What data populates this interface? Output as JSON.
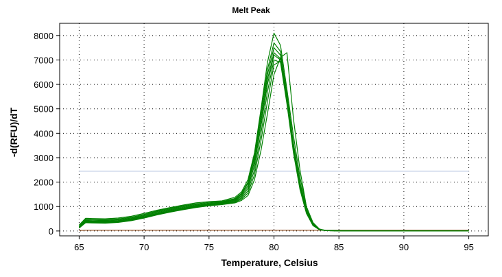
{
  "chart_data": {
    "type": "line",
    "title": "Melt Peak",
    "xlabel": "Temperature, Celsius",
    "ylabel": "-d(RFU)/dT",
    "xlim": [
      63.5,
      96.5
    ],
    "ylim": [
      -200,
      8500
    ],
    "x_ticks": [
      65,
      70,
      75,
      80,
      85,
      90,
      95
    ],
    "y_ticks": [
      0,
      1000,
      2000,
      3000,
      4000,
      5000,
      6000,
      7000,
      8000
    ],
    "grid": "dotted",
    "threshold": 2450,
    "threshold_color": "#c9d3e8",
    "series_color": "#008000",
    "baseline_color": "#8b4513",
    "x": [
      65,
      65.5,
      66,
      67,
      68,
      69,
      70,
      71,
      72,
      73,
      74,
      75,
      76,
      77,
      77.5,
      78,
      78.5,
      79,
      79.5,
      80,
      80.5,
      81,
      81.5,
      82,
      82.5,
      83,
      83.5,
      84,
      85,
      90,
      95
    ],
    "series": [
      {
        "values": [
          250,
          520,
          510,
          500,
          530,
          600,
          720,
          850,
          960,
          1060,
          1150,
          1200,
          1230,
          1380,
          1600,
          2100,
          3200,
          5000,
          6900,
          8100,
          7600,
          5800,
          3900,
          2200,
          1000,
          350,
          80,
          20,
          10,
          5,
          0
        ]
      },
      {
        "values": [
          200,
          480,
          470,
          460,
          490,
          560,
          680,
          820,
          930,
          1030,
          1110,
          1170,
          1200,
          1330,
          1540,
          2000,
          3100,
          4900,
          6600,
          7700,
          7350,
          5600,
          3600,
          2000,
          900,
          300,
          70,
          20,
          10,
          5,
          0
        ]
      },
      {
        "values": [
          180,
          450,
          440,
          430,
          460,
          530,
          650,
          790,
          900,
          1000,
          1080,
          1140,
          1180,
          1300,
          1500,
          1950,
          3000,
          4700,
          6400,
          7500,
          7200,
          5500,
          3500,
          1900,
          850,
          280,
          60,
          15,
          8,
          5,
          0
        ]
      },
      {
        "values": [
          160,
          420,
          410,
          400,
          430,
          500,
          620,
          760,
          870,
          970,
          1050,
          1110,
          1160,
          1270,
          1450,
          1850,
          2850,
          4500,
          6200,
          7300,
          7050,
          5400,
          3400,
          1850,
          800,
          260,
          60,
          15,
          8,
          5,
          0
        ]
      },
      {
        "values": [
          150,
          400,
          390,
          380,
          410,
          480,
          590,
          730,
          840,
          940,
          1020,
          1090,
          1140,
          1240,
          1400,
          1750,
          2700,
          4300,
          6000,
          7200,
          7000,
          5300,
          3300,
          1750,
          760,
          240,
          55,
          15,
          8,
          5,
          0
        ]
      },
      {
        "values": [
          140,
          380,
          370,
          360,
          390,
          460,
          570,
          700,
          810,
          910,
          1000,
          1070,
          1120,
          1210,
          1350,
          1650,
          2500,
          4000,
          5700,
          7000,
          6900,
          5200,
          3200,
          1700,
          720,
          220,
          50,
          12,
          6,
          5,
          0
        ]
      },
      {
        "values": [
          130,
          360,
          350,
          340,
          370,
          440,
          550,
          680,
          790,
          890,
          980,
          1050,
          1100,
          1180,
          1300,
          1550,
          2300,
          3700,
          5300,
          6800,
          6950,
          5400,
          3300,
          1750,
          740,
          230,
          50,
          12,
          6,
          5,
          0
        ]
      },
      {
        "values": [
          120,
          340,
          330,
          320,
          350,
          420,
          530,
          660,
          770,
          870,
          960,
          1030,
          1080,
          1150,
          1250,
          1450,
          2100,
          3300,
          4800,
          6400,
          7100,
          7300,
          4600,
          2500,
          1000,
          300,
          70,
          15,
          8,
          5,
          0
        ]
      }
    ],
    "baseline": [
      20,
      30,
      30,
      30,
      30,
      30,
      30,
      30,
      30,
      30,
      30,
      30,
      30,
      30,
      30,
      30,
      30,
      30,
      30,
      30,
      30,
      30,
      30,
      30,
      30,
      30,
      30,
      30,
      30,
      30,
      30
    ]
  }
}
